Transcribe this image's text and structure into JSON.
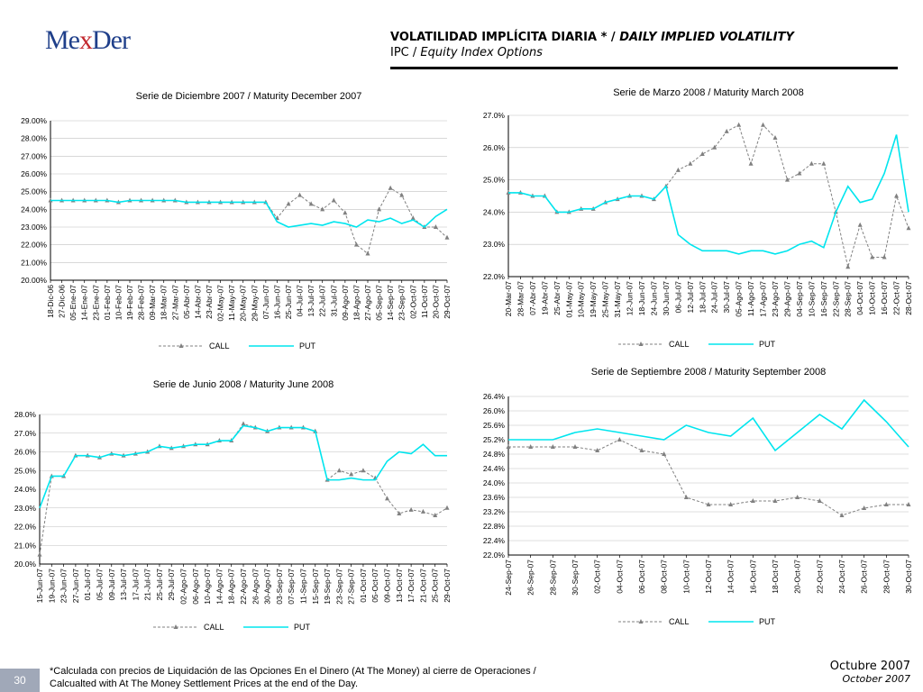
{
  "header": {
    "logo_left": "Me",
    "logo_x": "x",
    "logo_right": "Der",
    "title_bold": "VOLATILIDAD IMPLÍCITA DIARIA * / ",
    "title_italic": "DAILY IMPLIED VOLATILITY",
    "subtitle_plain": "IPC / ",
    "subtitle_italic": "Equity Index Options"
  },
  "footer": {
    "page_number": "30",
    "note_line1": "*Calculada con precios de Liquidación de las Opciones En el Dinero (At The Money) al cierre de Operaciones /",
    "note_line2": "Calcualted with At The Money Settlement Prices at the end of the Day.",
    "date_es": "Octubre 2007",
    "date_en": "October 2007"
  },
  "colors": {
    "call": "#808080",
    "put": "#00e5ee",
    "grid": "#c0c0c0"
  },
  "chart_data": [
    {
      "type": "line",
      "title": "Serie de Diciembre 2007 / Maturity December 2007",
      "ylim": [
        20,
        29
      ],
      "ystep": 1,
      "ydecimals": 2,
      "ytick_labels": [
        "29.00%",
        "28.00%",
        "27.00%",
        "26.00%",
        "25.00%",
        "24.00%",
        "23.00%",
        "22.00%",
        "21.00%",
        "20.00%"
      ],
      "categories": [
        "18-Dic-06",
        "27-Dic-06",
        "05-Ene-07",
        "14-Ene-07",
        "23-Ene-07",
        "01-Feb-07",
        "10-Feb-07",
        "19-Feb-07",
        "28-Feb-07",
        "09-Mar-07",
        "18-Mar-07",
        "27-Mar-07",
        "05-Abr-07",
        "14-Abr-07",
        "23-Abr-07",
        "02-May-07",
        "11-May-07",
        "20-May-07",
        "29-May-07",
        "07-Jun-07",
        "16-Jun-07",
        "25-Jun-07",
        "04-Jul-07",
        "13-Jul-07",
        "22-Jul-07",
        "31-Jul-07",
        "09-Ago-07",
        "18-Ago-07",
        "27-Ago-07",
        "05-Sep-07",
        "14-Sep-07",
        "23-Sep-07",
        "02-Oct-07",
        "11-Oct-07",
        "20-Oct-07",
        "29-Oct-07"
      ],
      "series": [
        {
          "name": "CALL",
          "values": [
            24.5,
            24.5,
            24.5,
            24.5,
            24.5,
            24.5,
            24.4,
            24.5,
            24.5,
            24.5,
            24.5,
            24.5,
            24.4,
            24.4,
            24.4,
            24.4,
            24.4,
            24.4,
            24.4,
            24.4,
            23.5,
            24.3,
            24.8,
            24.3,
            24.0,
            24.5,
            23.8,
            22.0,
            21.5,
            24.0,
            25.2,
            24.8,
            23.5,
            23.0,
            23.0,
            22.4
          ]
        },
        {
          "name": "PUT",
          "values": [
            24.5,
            24.5,
            24.5,
            24.5,
            24.5,
            24.5,
            24.4,
            24.5,
            24.5,
            24.5,
            24.5,
            24.5,
            24.4,
            24.4,
            24.4,
            24.4,
            24.4,
            24.4,
            24.4,
            24.4,
            23.3,
            23.0,
            23.1,
            23.2,
            23.1,
            23.3,
            23.2,
            23.0,
            23.4,
            23.3,
            23.5,
            23.2,
            23.4,
            23.0,
            23.6,
            24.0
          ]
        }
      ]
    },
    {
      "type": "line",
      "title": "Serie de Marzo 2008 / Maturity March 2008",
      "ylim": [
        22,
        27
      ],
      "ystep": 1,
      "ydecimals": 1,
      "ytick_labels": [
        "27.0%",
        "26.0%",
        "25.0%",
        "24.0%",
        "23.0%",
        "22.0%"
      ],
      "categories": [
        "20-Mar-07",
        "28-Mar-07",
        "07-Abr-07",
        "19-Abr-07",
        "25-Abr-07",
        "01-May-07",
        "10-May-07",
        "19-May-07",
        "25-May-07",
        "31-May-07",
        "12-Jun-07",
        "18-Jun-07",
        "24-Jun-07",
        "30-Jun-07",
        "06-Jul-07",
        "12-Jul-07",
        "18-Jul-07",
        "24-Jul-07",
        "30-Jul-07",
        "05-Ago-07",
        "11-Ago-07",
        "17-Ago-07",
        "23-Ago-07",
        "29-Ago-07",
        "04-Sep-07",
        "10-Sep-07",
        "16-Sep-07",
        "22-Sep-07",
        "28-Sep-07",
        "04-Oct-07",
        "10-Oct-07",
        "16-Oct-07",
        "22-Oct-07",
        "28-Oct-07"
      ],
      "series": [
        {
          "name": "CALL",
          "values": [
            24.6,
            24.6,
            24.5,
            24.5,
            24.0,
            24.0,
            24.1,
            24.1,
            24.3,
            24.4,
            24.5,
            24.5,
            24.4,
            24.8,
            25.3,
            25.5,
            25.8,
            26.0,
            26.5,
            26.7,
            25.5,
            26.7,
            26.3,
            25.0,
            25.2,
            25.5,
            25.5,
            24.0,
            22.3,
            23.6,
            22.6,
            22.6,
            24.5,
            23.5
          ]
        },
        {
          "name": "PUT",
          "values": [
            24.6,
            24.6,
            24.5,
            24.5,
            24.0,
            24.0,
            24.1,
            24.1,
            24.3,
            24.4,
            24.5,
            24.5,
            24.4,
            24.8,
            23.3,
            23.0,
            22.8,
            22.8,
            22.8,
            22.7,
            22.8,
            22.8,
            22.7,
            22.8,
            23.0,
            23.1,
            22.9,
            24.0,
            24.8,
            24.3,
            24.4,
            25.2,
            26.4,
            24.0
          ]
        }
      ]
    },
    {
      "type": "line",
      "title": "Serie de Junio 2008 / Maturity June 2008",
      "ylim": [
        20,
        28
      ],
      "ystep": 1,
      "ydecimals": 1,
      "ytick_labels": [
        "28.0%",
        "27.0%",
        "26.0%",
        "25.0%",
        "24.0%",
        "23.0%",
        "22.0%",
        "21.0%",
        "20.0%"
      ],
      "categories": [
        "15-Jun-07",
        "19-Jun-07",
        "23-Jun-07",
        "27-Jun-07",
        "01-Jul-07",
        "05-Jul-07",
        "09-Jul-07",
        "13-Jul-07",
        "17-Jul-07",
        "21-Jul-07",
        "25-Jul-07",
        "29-Jul-07",
        "02-Ago-07",
        "06-Ago-07",
        "10-Ago-07",
        "14-Ago-07",
        "18-Ago-07",
        "22-Ago-07",
        "26-Ago-07",
        "30-Ago-07",
        "03-Sep-07",
        "07-Sep-07",
        "11-Sep-07",
        "15-Sep-07",
        "19-Sep-07",
        "23-Sep-07",
        "27-Sep-07",
        "01-Oct-07",
        "05-Oct-07",
        "09-Oct-07",
        "13-Oct-07",
        "17-Oct-07",
        "21-Oct-07",
        "25-Oct-07",
        "29-Oct-07"
      ],
      "series": [
        {
          "name": "CALL",
          "values": [
            20.5,
            24.7,
            24.7,
            25.8,
            25.8,
            25.7,
            25.9,
            25.8,
            25.9,
            26.0,
            26.3,
            26.2,
            26.3,
            26.4,
            26.4,
            26.6,
            26.6,
            27.5,
            27.3,
            27.1,
            27.3,
            27.3,
            27.3,
            27.1,
            24.5,
            25.0,
            24.8,
            25.0,
            24.6,
            23.5,
            22.7,
            22.9,
            22.8,
            22.6,
            23.0
          ]
        },
        {
          "name": "PUT",
          "values": [
            23.0,
            24.7,
            24.7,
            25.8,
            25.8,
            25.7,
            25.9,
            25.8,
            25.9,
            26.0,
            26.3,
            26.2,
            26.3,
            26.4,
            26.4,
            26.6,
            26.6,
            27.4,
            27.3,
            27.1,
            27.3,
            27.3,
            27.3,
            27.1,
            24.5,
            24.5,
            24.6,
            24.5,
            24.5,
            25.5,
            26.0,
            25.9,
            26.4,
            25.8,
            25.8
          ]
        }
      ]
    },
    {
      "type": "line",
      "title": "Serie de Septiembre 2008 / Maturity September 2008",
      "ylim": [
        22,
        26.4
      ],
      "ystep": 0.4,
      "ydecimals": 1,
      "ytick_labels": [
        "26.4%",
        "26.0%",
        "25.6%",
        "25.2%",
        "24.8%",
        "24.4%",
        "24.0%",
        "23.6%",
        "23.2%",
        "22.8%",
        "22.4%",
        "22.0%"
      ],
      "categories": [
        "24-Sep-07",
        "26-Sep-07",
        "28-Sep-07",
        "30-Sep-07",
        "02-Oct-07",
        "04-Oct-07",
        "06-Oct-07",
        "08-Oct-07",
        "10-Oct-07",
        "12-Oct-07",
        "14-Oct-07",
        "16-Oct-07",
        "18-Oct-07",
        "20-Oct-07",
        "22-Oct-07",
        "24-Oct-07",
        "26-Oct-07",
        "28-Oct-07",
        "30-Oct-07"
      ],
      "series": [
        {
          "name": "CALL",
          "values": [
            25.0,
            25.0,
            25.0,
            25.0,
            24.9,
            25.2,
            24.9,
            24.8,
            23.6,
            23.4,
            23.4,
            23.5,
            23.5,
            23.6,
            23.5,
            23.1,
            23.3,
            23.4,
            23.4
          ]
        },
        {
          "name": "PUT",
          "values": [
            25.2,
            25.2,
            25.2,
            25.4,
            25.5,
            25.4,
            25.3,
            25.2,
            25.6,
            25.4,
            25.3,
            25.8,
            24.9,
            25.4,
            25.9,
            25.5,
            26.3,
            25.7,
            25.0
          ]
        }
      ]
    }
  ]
}
